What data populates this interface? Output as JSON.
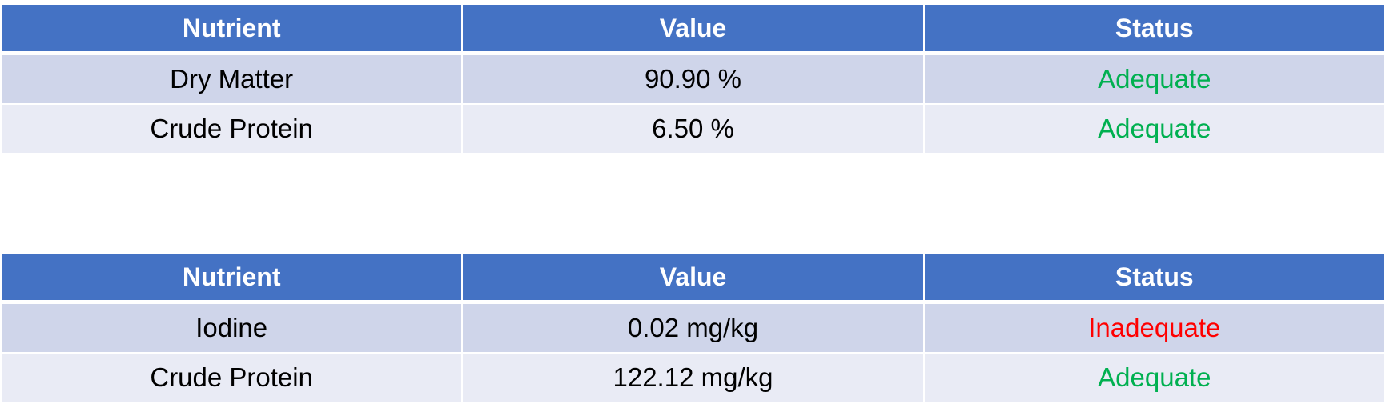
{
  "tables": [
    {
      "headers": {
        "nutrient": "Nutrient",
        "value": "Value",
        "status": "Status"
      },
      "rows": [
        {
          "nutrient": "Dry Matter",
          "value": "90.90 %",
          "status": "Adequate"
        },
        {
          "nutrient": "Crude Protein",
          "value": "6.50 %",
          "status": "Adequate"
        }
      ]
    },
    {
      "headers": {
        "nutrient": "Nutrient",
        "value": "Value",
        "status": "Status"
      },
      "rows": [
        {
          "nutrient": "Iodine",
          "value": "0.02 mg/kg",
          "status": "Inadequate"
        },
        {
          "nutrient": "Crude Protein",
          "value": "122.12 mg/kg",
          "status": "Adequate"
        }
      ]
    }
  ],
  "colors": {
    "header_bg": "#4472c4",
    "row_odd_bg": "#cfd5ea",
    "row_even_bg": "#e9ebf5",
    "adequate": "#00b050",
    "inadequate": "#ff0000"
  }
}
